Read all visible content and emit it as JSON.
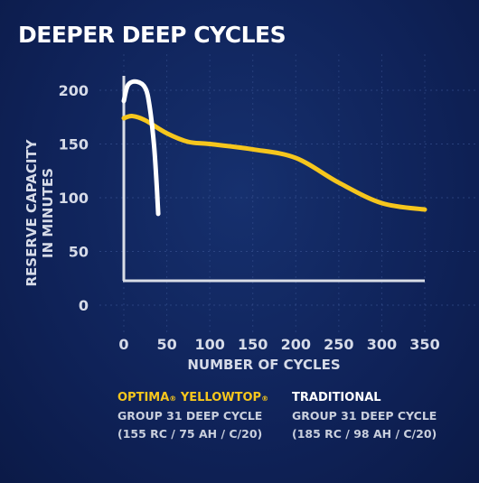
{
  "title": "DEEPER DEEP CYCLES",
  "chart_data": {
    "type": "line",
    "ylabel_line1": "RESERVE CAPACITY",
    "ylabel_line2": "IN MINUTES",
    "xlabel": "NUMBER OF CYCLES",
    "xlim": [
      0,
      350
    ],
    "ylim": [
      0,
      200
    ],
    "x_ticks": [
      0,
      50,
      100,
      150,
      200,
      250,
      300,
      350
    ],
    "y_ticks": [
      0,
      50,
      100,
      150,
      200
    ],
    "grid": true,
    "series": [
      {
        "color": "#f6c61d",
        "x": [
          0,
          10,
          25,
          50,
          75,
          100,
          150,
          200,
          250,
          300,
          350
        ],
        "y": [
          174,
          176,
          172,
          160,
          152,
          150,
          145,
          137,
          114,
          95,
          89
        ]
      },
      {
        "color": "#ffffff",
        "x": [
          0,
          5,
          15,
          25,
          30,
          35,
          38,
          40
        ],
        "y": [
          190,
          205,
          208,
          202,
          185,
          150,
          115,
          85
        ]
      }
    ]
  },
  "legend": {
    "optima": {
      "brand": "OPTIMA",
      "product": "YELLOWTOP",
      "mark": "®",
      "line2": "GROUP 31 DEEP CYCLE",
      "line3": "(155 RC / 75 AH / C/20)"
    },
    "traditional": {
      "head": "TRADITIONAL",
      "line2": "GROUP 31 DEEP CYCLE",
      "line3": "(185 RC / 98 AH / C/20)"
    }
  }
}
